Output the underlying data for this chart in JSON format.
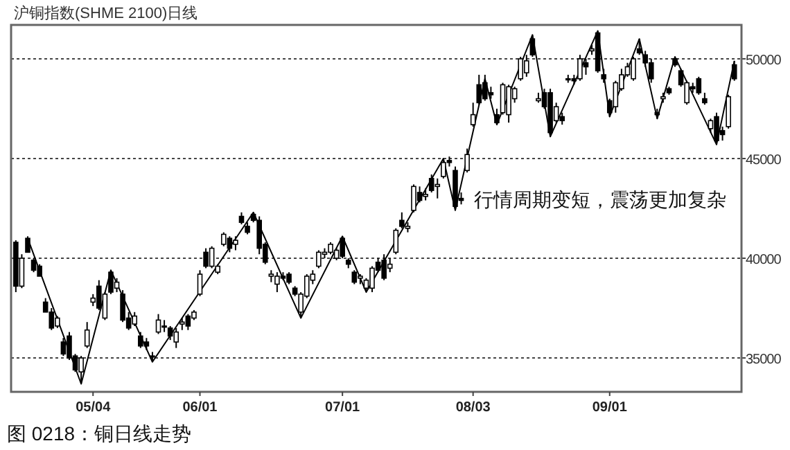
{
  "chart_data": {
    "type": "candlestick",
    "title": "沪铜指数(SHME 2100)日线",
    "annotations": [
      "行情周期变短，震荡更加复杂",
      "图 0218：铜日线走势"
    ],
    "categories": [
      null,
      null,
      null,
      null,
      null,
      null,
      null,
      null,
      null,
      null,
      null,
      null,
      null,
      "05/04",
      null,
      null,
      null,
      null,
      null,
      null,
      null,
      null,
      null,
      null,
      null,
      null,
      null,
      null,
      null,
      null,
      null,
      "06/01",
      null,
      null,
      null,
      null,
      null,
      null,
      null,
      null,
      null,
      null,
      null,
      null,
      null,
      null,
      null,
      null,
      null,
      null,
      null,
      null,
      null,
      null,
      null,
      "07/01",
      null,
      null,
      null,
      null,
      null,
      null,
      null,
      null,
      null,
      null,
      null,
      null,
      null,
      null,
      null,
      null,
      null,
      null,
      null,
      null,
      null,
      "08/03",
      null,
      null,
      null,
      null,
      null,
      null,
      null,
      null,
      null,
      null,
      null,
      null,
      null,
      null,
      null,
      null,
      null,
      null,
      null,
      null,
      null,
      null,
      "09/01",
      null,
      null,
      null,
      null,
      null,
      null,
      null,
      null,
      null,
      null,
      null,
      null,
      null,
      null,
      null,
      null,
      null,
      null,
      null,
      null,
      null
    ],
    "ohlc": [
      [
        40800,
        40900,
        38300,
        38600
      ],
      [
        38600,
        40200,
        38500,
        40000
      ],
      [
        41000,
        41100,
        40300,
        40300
      ],
      [
        39900,
        40000,
        39300,
        39400
      ],
      [
        39600,
        39700,
        39100,
        39100
      ],
      [
        37800,
        38000,
        37300,
        37300
      ],
      [
        37300,
        37500,
        36400,
        36500
      ],
      [
        36600,
        37100,
        36500,
        37000
      ],
      [
        35800,
        36000,
        35100,
        35200
      ],
      [
        36100,
        36300,
        34900,
        35000
      ],
      [
        35100,
        35200,
        34300,
        34400
      ],
      [
        34300,
        35100,
        33700,
        35000
      ],
      [
        35600,
        36800,
        35500,
        36400
      ],
      [
        37800,
        38200,
        37600,
        38000
      ],
      [
        38600,
        38900,
        37400,
        37500
      ],
      [
        37000,
        38300,
        36900,
        38200
      ],
      [
        39300,
        39400,
        38200,
        38300
      ],
      [
        38500,
        39000,
        38300,
        38800
      ],
      [
        38200,
        38400,
        36800,
        36900
      ],
      [
        37000,
        37300,
        36400,
        36500
      ],
      [
        36700,
        37300,
        36600,
        37100
      ],
      [
        36100,
        36300,
        35500,
        35600
      ],
      [
        35800,
        36000,
        35400,
        35600
      ],
      [
        35100,
        35300,
        34800,
        35100
      ],
      [
        36300,
        37200,
        36200,
        36900
      ],
      [
        36600,
        36900,
        36300,
        36600
      ],
      [
        36500,
        36600,
        35900,
        36100
      ],
      [
        35800,
        36500,
        35500,
        36300
      ],
      [
        36700,
        37000,
        36400,
        36800
      ],
      [
        37100,
        37200,
        36400,
        36600
      ],
      [
        37000,
        37400,
        36900,
        37300
      ],
      [
        38200,
        39400,
        38100,
        39200
      ],
      [
        40300,
        40500,
        39500,
        39600
      ],
      [
        39600,
        40600,
        39500,
        40500
      ],
      [
        39300,
        39700,
        39200,
        39600
      ],
      [
        40700,
        41300,
        40600,
        41200
      ],
      [
        41000,
        41100,
        40300,
        40500
      ],
      [
        40700,
        41100,
        40400,
        40900
      ],
      [
        42100,
        42300,
        41700,
        41800
      ],
      [
        41600,
        41800,
        41200,
        41300
      ],
      [
        42200,
        42300,
        41800,
        41900
      ],
      [
        41900,
        42100,
        40200,
        40500
      ],
      [
        40700,
        40800,
        39700,
        39800
      ],
      [
        39100,
        39400,
        38800,
        39200
      ],
      [
        38700,
        39300,
        38300,
        39100
      ],
      [
        39100,
        39300,
        38900,
        39000
      ],
      [
        39200,
        39300,
        38700,
        38800
      ],
      [
        38500,
        38600,
        38100,
        38200
      ],
      [
        37300,
        38300,
        37000,
        38200
      ],
      [
        38100,
        39200,
        38000,
        39100
      ],
      [
        38900,
        39400,
        38700,
        39200
      ],
      [
        39600,
        40400,
        39500,
        40300
      ],
      [
        40200,
        40500,
        40000,
        40300
      ],
      [
        40300,
        40800,
        40200,
        40700
      ],
      [
        40000,
        40500,
        39900,
        40400
      ],
      [
        41000,
        41100,
        40000,
        40100
      ],
      [
        39900,
        40000,
        39500,
        39700
      ],
      [
        39300,
        39400,
        38700,
        38800
      ],
      [
        39000,
        39200,
        38700,
        39100
      ],
      [
        38500,
        39000,
        38300,
        38900
      ],
      [
        38500,
        39600,
        38300,
        39500
      ],
      [
        39800,
        40000,
        39300,
        39400
      ],
      [
        39900,
        40200,
        38900,
        39000
      ],
      [
        39500,
        40000,
        39300,
        39700
      ],
      [
        40300,
        41500,
        40200,
        41400
      ],
      [
        41900,
        42300,
        41500,
        41600
      ],
      [
        41500,
        41800,
        41300,
        41600
      ],
      [
        42400,
        43700,
        42300,
        43600
      ],
      [
        43300,
        43600,
        42800,
        42900
      ],
      [
        43100,
        43500,
        42900,
        43200
      ],
      [
        44000,
        44200,
        43300,
        43400
      ],
      [
        43600,
        44000,
        43000,
        43700
      ],
      [
        44100,
        45000,
        44000,
        44800
      ],
      [
        44900,
        45100,
        44600,
        44800
      ],
      [
        44400,
        44600,
        42400,
        42600
      ],
      [
        43000,
        43300,
        42700,
        42900
      ],
      [
        44400,
        45500,
        44300,
        45200
      ],
      [
        46700,
        47800,
        46600,
        47200
      ],
      [
        48700,
        49200,
        47700,
        47800
      ],
      [
        48800,
        49200,
        47900,
        48000
      ],
      [
        48300,
        48600,
        48000,
        48200
      ],
      [
        47200,
        47500,
        46700,
        46800
      ],
      [
        47300,
        48800,
        47200,
        48700
      ],
      [
        47200,
        48700,
        46800,
        48600
      ],
      [
        48000,
        48600,
        47800,
        48500
      ],
      [
        49000,
        50100,
        48900,
        50000
      ],
      [
        49300,
        50200,
        49100,
        49900
      ],
      [
        51000,
        51200,
        50100,
        50200
      ],
      [
        47900,
        48300,
        47800,
        48000
      ],
      [
        48300,
        48500,
        47500,
        47600
      ],
      [
        48300,
        48500,
        46100,
        46300
      ],
      [
        46900,
        47800,
        46800,
        47600
      ],
      [
        47100,
        47300,
        46700,
        46900
      ],
      [
        49000,
        49200,
        48800,
        49000
      ],
      [
        49000,
        49200,
        48700,
        48900
      ],
      [
        49000,
        50200,
        48900,
        50000
      ],
      [
        49800,
        50000,
        49200,
        49600
      ],
      [
        50400,
        50700,
        50200,
        50500
      ],
      [
        51300,
        51400,
        49300,
        49400
      ],
      [
        49200,
        49500,
        48800,
        49000
      ],
      [
        47900,
        48000,
        47100,
        47300
      ],
      [
        47600,
        48900,
        47300,
        48800
      ],
      [
        48500,
        49500,
        48400,
        49200
      ],
      [
        49200,
        49800,
        49100,
        49600
      ],
      [
        49000,
        50100,
        48900,
        50000
      ],
      [
        50500,
        51000,
        50200,
        50300
      ],
      [
        50200,
        50400,
        49600,
        49800
      ],
      [
        49800,
        50000,
        48800,
        49000
      ],
      [
        47300,
        47500,
        47000,
        47200
      ],
      [
        48000,
        48300,
        47800,
        48100
      ],
      [
        48500,
        48600,
        48200,
        48300
      ],
      [
        50000,
        50100,
        49600,
        49700
      ],
      [
        49400,
        49500,
        48600,
        48700
      ],
      [
        47800,
        48900,
        47700,
        48800
      ],
      [
        48600,
        48800,
        48300,
        48500
      ],
      [
        49000,
        49100,
        48200,
        48300
      ],
      [
        48000,
        48300,
        47700,
        47800
      ],
      [
        46500,
        47000,
        46300,
        46900
      ],
      [
        47100,
        47300,
        45700,
        45900
      ],
      [
        46400,
        46600,
        45900,
        46200
      ],
      [
        46600,
        48200,
        46500,
        48100
      ],
      [
        49700,
        49900,
        48900,
        49000
      ]
    ],
    "series": [
      {
        "type": "line",
        "color": "#000000",
        "values": [
          null,
          null,
          41000,
          null,
          null,
          null,
          null,
          null,
          null,
          null,
          null,
          33700,
          null,
          null,
          null,
          null,
          39400,
          null,
          null,
          null,
          null,
          null,
          null,
          34800,
          null,
          null,
          null,
          null,
          null,
          null,
          null,
          null,
          null,
          null,
          null,
          null,
          null,
          null,
          null,
          null,
          42300,
          null,
          null,
          null,
          null,
          null,
          null,
          null,
          37000,
          null,
          null,
          null,
          null,
          null,
          null,
          41100,
          null,
          null,
          null,
          38300,
          null,
          null,
          null,
          null,
          null,
          null,
          null,
          null,
          null,
          null,
          null,
          null,
          45000,
          null,
          42400,
          null,
          null,
          null,
          null,
          49000,
          null,
          46700,
          null,
          null,
          null,
          null,
          null,
          51200,
          null,
          null,
          46100,
          null,
          null,
          null,
          null,
          null,
          null,
          null,
          51400,
          null,
          47100,
          null,
          null,
          null,
          null,
          51000,
          null,
          null,
          47000,
          null,
          null,
          50100,
          null,
          null,
          null,
          null,
          null,
          null,
          45700,
          null,
          null,
          49900
        ]
      }
    ],
    "ylim": [
      33300,
      51700
    ],
    "yticks": [
      35000,
      40000,
      45000,
      50000
    ],
    "grid": "y",
    "tick_labels": "xy"
  }
}
